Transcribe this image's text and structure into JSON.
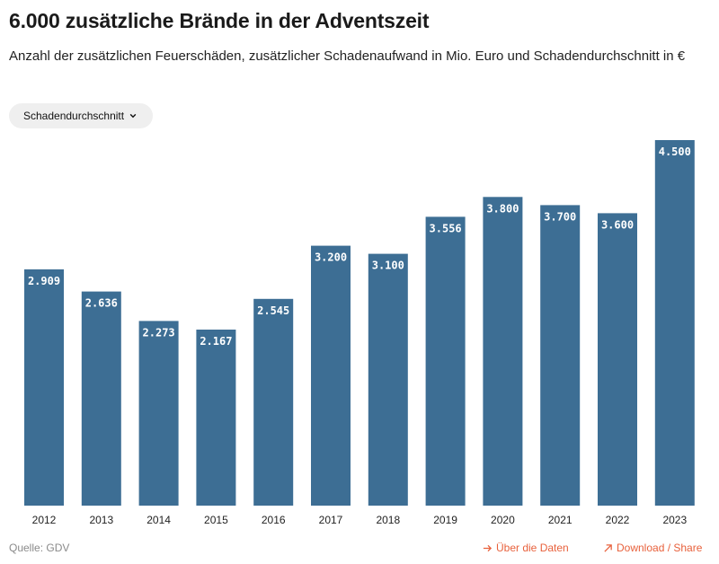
{
  "header": {
    "title": "6.000 zusätzliche Brände in der Adventszeit",
    "subtitle": "Anzahl der zusätzlichen Feuerschäden, zusätzlicher Schadenaufwand in Mio. Euro und Schadendurchschnitt in €"
  },
  "selector": {
    "label": "Schadendurchschnitt"
  },
  "footer": {
    "source": "Quelle: GDV",
    "data_link": "Über die Daten",
    "share_link": "Download / Share"
  },
  "colors": {
    "bar": "#3d6e94",
    "link": "#e8613c"
  },
  "chart_data": {
    "type": "bar",
    "categories": [
      "2012",
      "2013",
      "2014",
      "2015",
      "2016",
      "2017",
      "2018",
      "2019",
      "2020",
      "2021",
      "2022",
      "2023"
    ],
    "values": [
      2909,
      2636,
      2273,
      2167,
      2545,
      3200,
      3100,
      3556,
      3800,
      3700,
      3600,
      4500
    ],
    "value_labels": [
      "2.909",
      "2.636",
      "2.273",
      "2.167",
      "2.545",
      "3.200",
      "3.100",
      "3.556",
      "3.800",
      "3.700",
      "3.600",
      "4.500"
    ],
    "ylim": [
      0,
      4500
    ],
    "grid": false,
    "title": "",
    "xlabel": "",
    "ylabel": ""
  }
}
